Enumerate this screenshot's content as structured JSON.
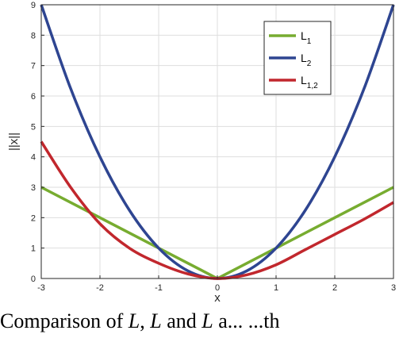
{
  "chart_data": {
    "type": "line",
    "xlabel": "x",
    "ylabel": "||x||",
    "xlim": [
      -3,
      3
    ],
    "ylim": [
      0,
      9
    ],
    "xticks": [
      "-3",
      "-2",
      "-1",
      "0",
      "1",
      "2",
      "3"
    ],
    "yticks": [
      "0",
      "1",
      "2",
      "3",
      "4",
      "5",
      "6",
      "7",
      "8",
      "9"
    ],
    "grid": true,
    "legend_position": "top-right",
    "series": [
      {
        "name": "L",
        "subscript": "1",
        "style": "dashed",
        "color": "#77AC30",
        "x": [
          -3,
          -2,
          -1,
          0,
          1,
          2,
          3
        ],
        "y": [
          3,
          2,
          1,
          0,
          1,
          2,
          3
        ]
      },
      {
        "name": "L",
        "subscript": "2",
        "style": "dotted",
        "color": "#2E4591",
        "x": [
          -3,
          -2.5,
          -2,
          -1.5,
          -1,
          -0.5,
          0,
          0.5,
          1,
          1.5,
          2,
          2.5,
          3
        ],
        "y": [
          9,
          6.25,
          4,
          2.25,
          1,
          0.25,
          0,
          0.25,
          1,
          2.25,
          4,
          6.25,
          9
        ]
      },
      {
        "name": "L",
        "subscript": "1,2",
        "style": "dashdot",
        "color": "#C1272D",
        "x": [
          -3,
          -2.5,
          -2,
          -1.5,
          -1,
          -0.5,
          0,
          0.5,
          1,
          1.5,
          2,
          2.5,
          3
        ],
        "y": [
          4.5,
          3.0,
          1.8,
          1.0,
          0.5,
          0.15,
          0,
          0.12,
          0.45,
          0.95,
          1.45,
          1.95,
          2.5
        ]
      }
    ]
  },
  "caption": {
    "prefix": "Comparison of ",
    "term1": "L",
    "sep1": ", ",
    "term2": "L",
    "sep2": " and ",
    "term3": "L",
    "suffix": " a... ...th"
  }
}
